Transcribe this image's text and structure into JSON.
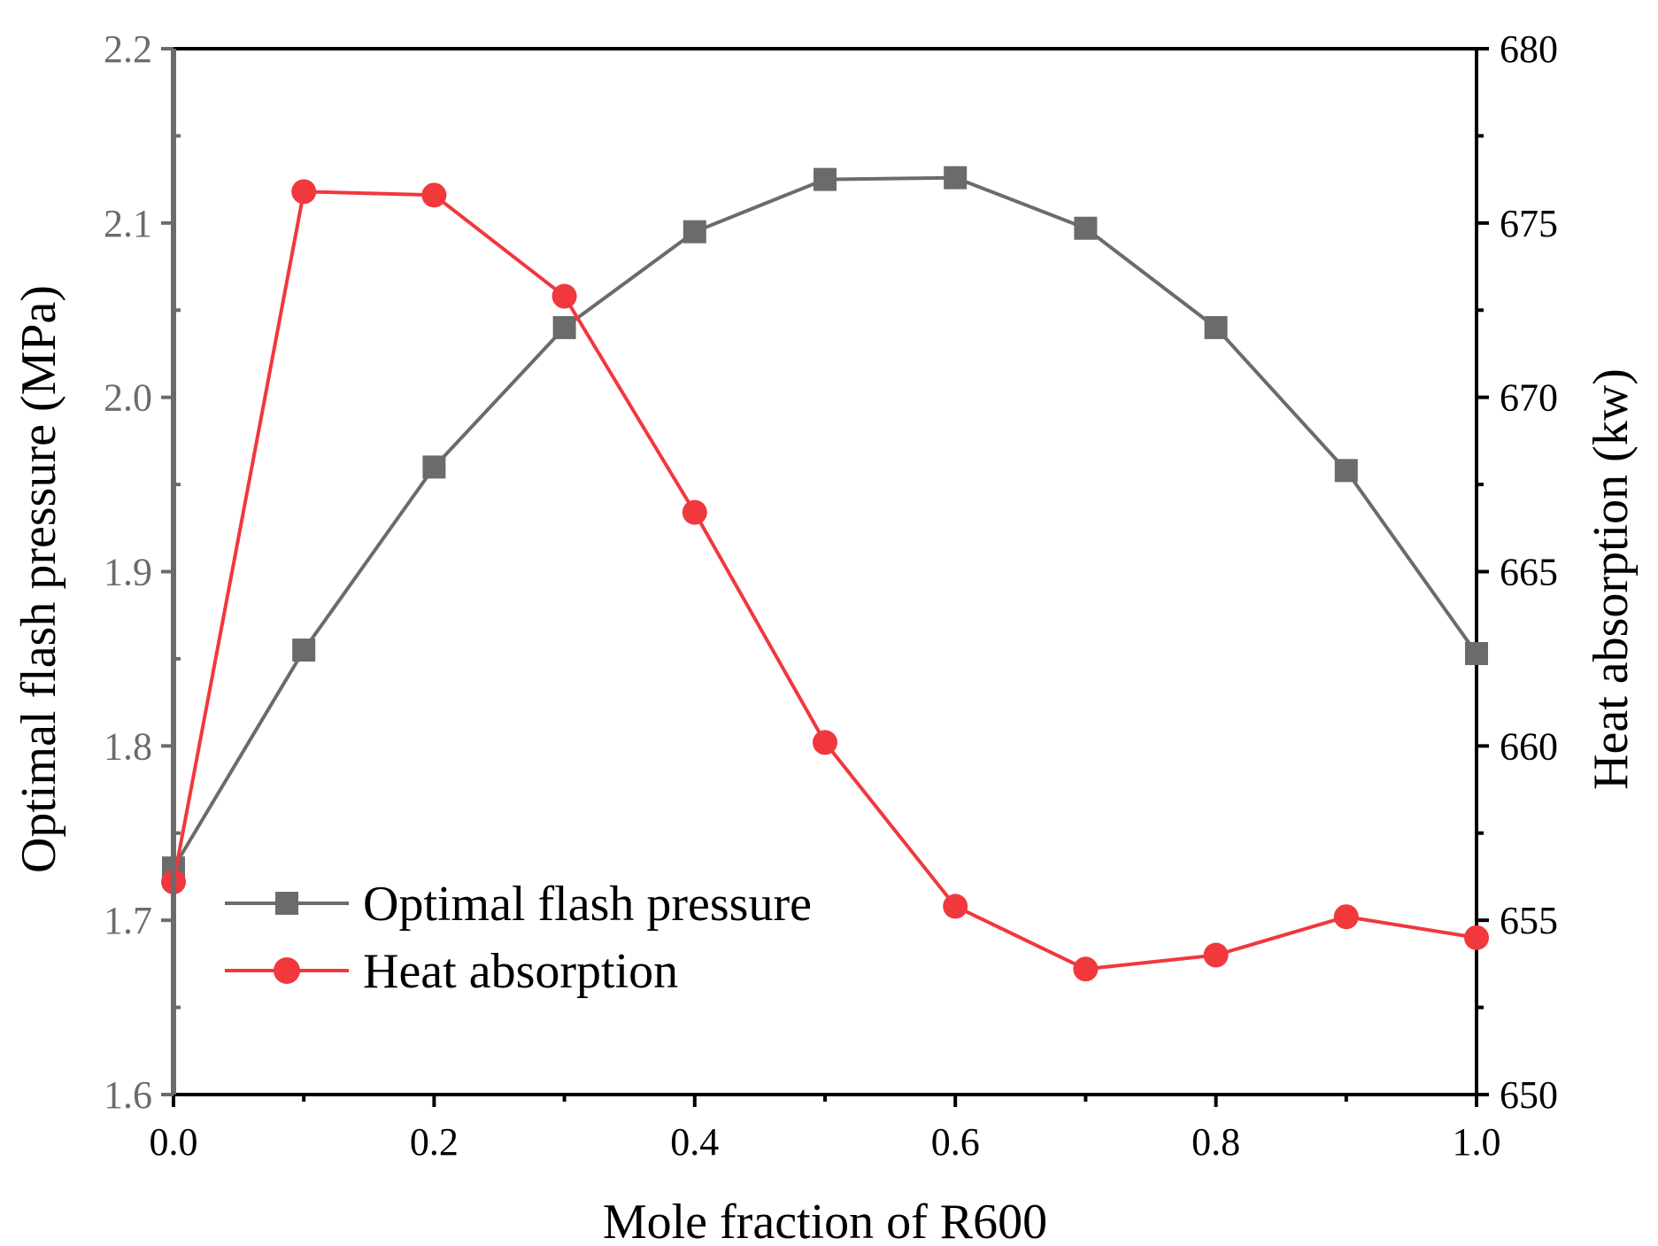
{
  "chart_data": {
    "type": "line",
    "title": "",
    "xlabel": "Mole fraction of R600",
    "ylabel_left": "Optimal flash pressure (MPa)",
    "ylabel_right": "Heat absorption (kw)",
    "xlim": [
      0.0,
      1.0
    ],
    "ylim_left": [
      1.6,
      2.2
    ],
    "ylim_right": [
      650,
      680
    ],
    "x_ticks": [
      0.0,
      0.2,
      0.4,
      0.6,
      0.8,
      1.0
    ],
    "x_tick_labels": [
      "0.0",
      "0.2",
      "0.4",
      "0.6",
      "0.8",
      "1.0"
    ],
    "y_left_ticks": [
      1.6,
      1.7,
      1.8,
      1.9,
      2.0,
      2.1,
      2.2
    ],
    "y_left_tick_labels": [
      "1.6",
      "1.7",
      "1.8",
      "1.9",
      "2.0",
      "2.1",
      "2.2"
    ],
    "y_right_ticks": [
      650,
      655,
      660,
      665,
      670,
      675,
      680
    ],
    "y_right_tick_labels": [
      "650",
      "655",
      "660",
      "665",
      "670",
      "675",
      "680"
    ],
    "grid": false,
    "legend_position": "bottom-left",
    "x": [
      0.0,
      0.1,
      0.2,
      0.3,
      0.4,
      0.5,
      0.6,
      0.7,
      0.8,
      0.9,
      1.0
    ],
    "series": [
      {
        "name": "Optimal flash pressure",
        "axis": "left",
        "marker": "square",
        "color": "#6b6b6b",
        "values": [
          1.73,
          1.855,
          1.96,
          2.04,
          2.095,
          2.125,
          2.126,
          2.097,
          2.04,
          1.958,
          1.853
        ]
      },
      {
        "name": "Heat absorption",
        "axis": "right",
        "marker": "circle",
        "color": "#f0383d",
        "values": [
          656.1,
          675.9,
          675.8,
          672.9,
          666.7,
          660.1,
          655.4,
          653.6,
          654.0,
          655.1,
          654.5
        ]
      }
    ]
  }
}
